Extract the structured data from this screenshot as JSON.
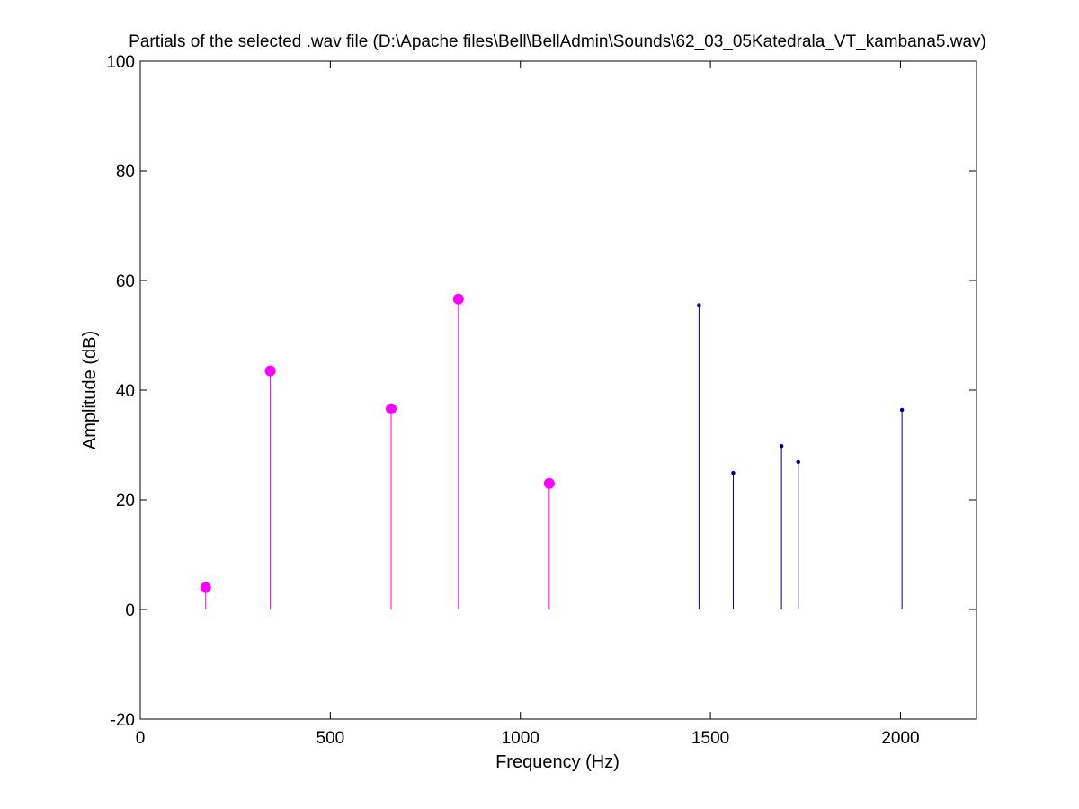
{
  "chart_data": {
    "type": "stem",
    "title": "Partials of the selected .wav file (D:\\Apache files\\Bell\\BellAdmin\\Sounds\\62_03_05Katedrala_VT_kambana5.wav)",
    "xlabel": "Frequency (Hz)",
    "ylabel": "Amplitude (dB)",
    "xlim": [
      0,
      2200
    ],
    "ylim": [
      -20,
      100
    ],
    "xticks": [
      0,
      500,
      1000,
      1500,
      2000
    ],
    "yticks": [
      -20,
      0,
      20,
      40,
      60,
      80,
      100
    ],
    "grid": false,
    "series": [
      {
        "color": "#ff00ff",
        "marker": "large-dot",
        "x": [
          172,
          342,
          660,
          837,
          1076
        ],
        "values": [
          4,
          43.5,
          36.6,
          56.6,
          23
        ]
      },
      {
        "color": "#00008b",
        "marker": "small-dot",
        "x": [
          1470,
          1560,
          1687,
          1731,
          2004
        ],
        "values": [
          55.5,
          24.9,
          29.8,
          26.9,
          36.4
        ]
      }
    ]
  }
}
